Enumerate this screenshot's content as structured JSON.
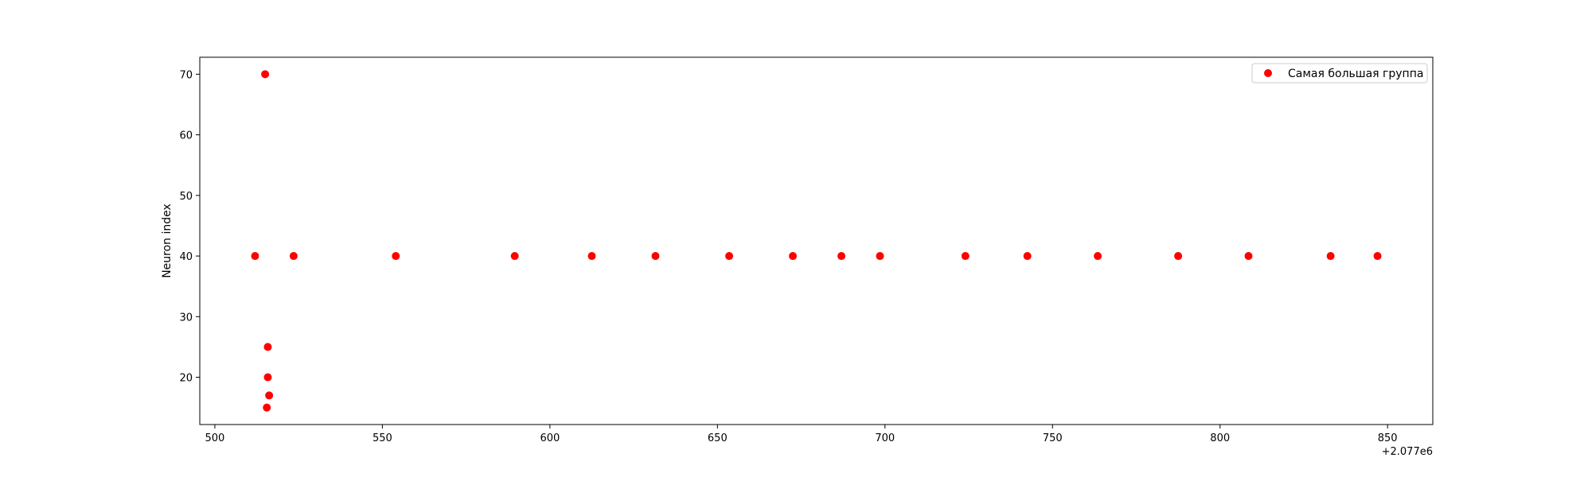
{
  "chart_data": {
    "type": "scatter",
    "title": "",
    "xlabel": "",
    "ylabel": "Neuron index",
    "x_offset_label": "+2.077e6",
    "xlim": [
      495.5,
      863.5
    ],
    "ylim": [
      12.2,
      72.8
    ],
    "xticks": [
      500,
      550,
      600,
      650,
      700,
      750,
      800,
      850
    ],
    "yticks": [
      20,
      30,
      40,
      50,
      60,
      70
    ],
    "xtick_labels": [
      "500",
      "550",
      "600",
      "650",
      "700",
      "750",
      "800",
      "850"
    ],
    "ytick_labels": [
      "20",
      "30",
      "40",
      "50",
      "60",
      "70"
    ],
    "grid": false,
    "legend_position": "top-right",
    "series": [
      {
        "name": "Самая большая группа",
        "color": "#ff0000",
        "marker": "circle",
        "points": [
          {
            "x": 512,
            "y": 40
          },
          {
            "x": 515,
            "y": 70
          },
          {
            "x": 515.5,
            "y": 15
          },
          {
            "x": 515.8,
            "y": 25
          },
          {
            "x": 515.8,
            "y": 20
          },
          {
            "x": 516.2,
            "y": 17
          },
          {
            "x": 523.5,
            "y": 40
          },
          {
            "x": 554,
            "y": 40
          },
          {
            "x": 589.5,
            "y": 40
          },
          {
            "x": 612.5,
            "y": 40
          },
          {
            "x": 631.5,
            "y": 40
          },
          {
            "x": 653.5,
            "y": 40
          },
          {
            "x": 672.5,
            "y": 40
          },
          {
            "x": 687,
            "y": 40
          },
          {
            "x": 698.5,
            "y": 40
          },
          {
            "x": 724,
            "y": 40
          },
          {
            "x": 742.5,
            "y": 40
          },
          {
            "x": 763.5,
            "y": 40
          },
          {
            "x": 787.5,
            "y": 40
          },
          {
            "x": 808.5,
            "y": 40
          },
          {
            "x": 833,
            "y": 40
          },
          {
            "x": 847,
            "y": 40
          }
        ]
      }
    ]
  }
}
